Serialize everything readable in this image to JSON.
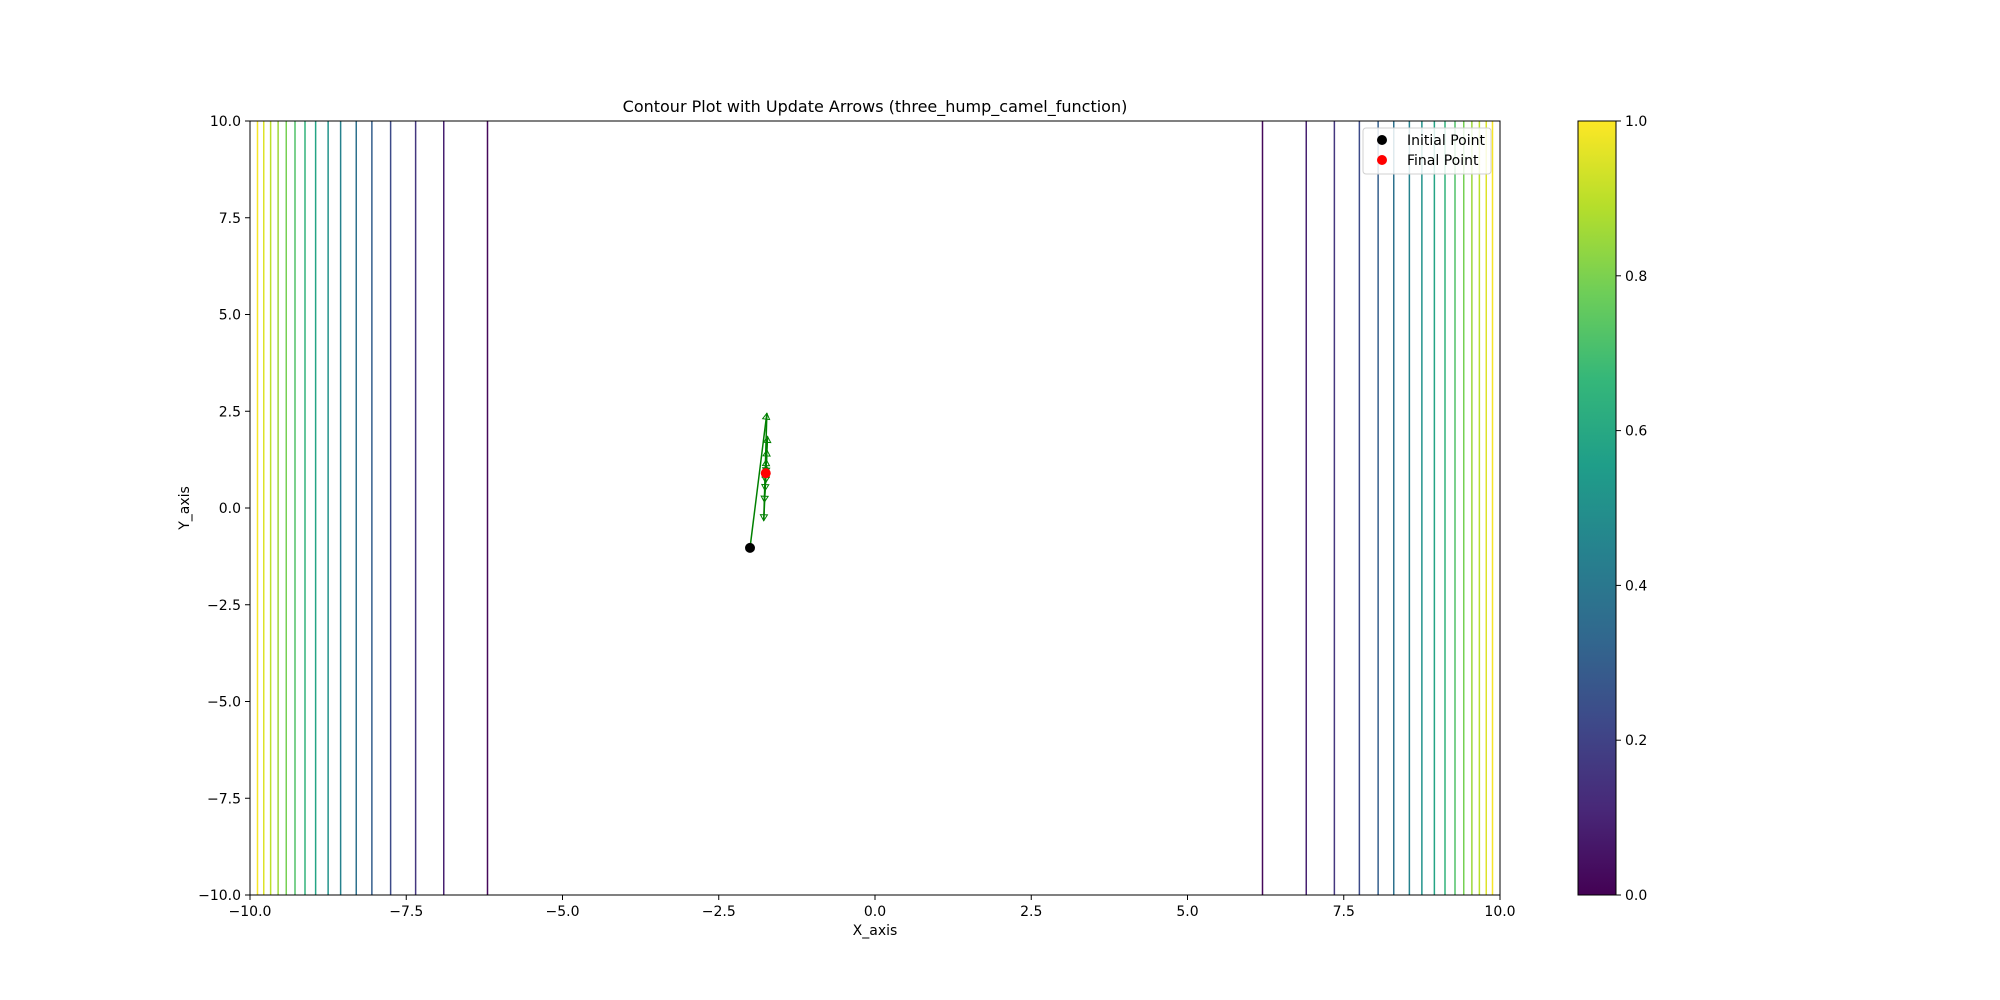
{
  "chart_data": {
    "type": "contour",
    "title": "Contour Plot with Update Arrows (three_hump_camel_function)",
    "xlabel": "X_axis",
    "ylabel": "Y_axis",
    "xlim": [
      -10,
      10
    ],
    "ylim": [
      -10,
      10
    ],
    "x_ticks": [
      "−10.0",
      "−7.5",
      "−5.0",
      "−2.5",
      "0.0",
      "2.5",
      "5.0",
      "7.5",
      "10.0"
    ],
    "y_ticks": [
      "−10.0",
      "−7.5",
      "−5.0",
      "−2.5",
      "0.0",
      "2.5",
      "5.0",
      "7.5",
      "10.0"
    ],
    "x_tick_values": [
      -10,
      -7.5,
      -5,
      -2.5,
      0,
      2.5,
      5,
      7.5,
      10
    ],
    "y_tick_values": [
      -10,
      -7.5,
      -5,
      -2.5,
      0,
      2.5,
      5,
      7.5,
      10
    ],
    "colormap": "viridis",
    "colorbar": {
      "range": [
        0,
        1
      ],
      "ticks": [
        "0.0",
        "0.2",
        "0.4",
        "0.6",
        "0.8",
        "1.0"
      ],
      "tick_values": [
        0,
        0.2,
        0.4,
        0.6,
        0.8,
        1.0
      ],
      "colors": [
        "#440154",
        "#482878",
        "#3e4989",
        "#31688e",
        "#26828e",
        "#1f9e89",
        "#35b779",
        "#6ece58",
        "#b5de2b",
        "#fde725"
      ]
    },
    "contour_levels": {
      "left_x": [
        -6.2,
        -6.9,
        -7.35,
        -7.75,
        -8.05,
        -8.3,
        -8.55,
        -8.75,
        -8.95,
        -9.12,
        -9.28,
        -9.42,
        -9.55,
        -9.67,
        -9.78,
        -9.88
      ],
      "right_x": [
        6.2,
        6.9,
        7.35,
        7.75,
        8.05,
        8.3,
        8.55,
        8.75,
        8.95,
        9.12,
        9.28,
        9.42,
        9.55,
        9.67,
        9.78,
        9.88
      ],
      "values": [
        0.02,
        0.09,
        0.16,
        0.23,
        0.3,
        0.37,
        0.44,
        0.51,
        0.58,
        0.65,
        0.72,
        0.79,
        0.85,
        0.9,
        0.95,
        0.99
      ]
    },
    "path": {
      "color": "#008000",
      "points": [
        [
          -2.0,
          -1.03
        ],
        [
          -1.73,
          2.45
        ],
        [
          -1.78,
          -0.33
        ],
        [
          -1.72,
          1.85
        ],
        [
          -1.77,
          0.15
        ],
        [
          -1.73,
          1.5
        ],
        [
          -1.76,
          0.45
        ],
        [
          -1.74,
          1.25
        ],
        [
          -1.75,
          0.65
        ],
        [
          -1.74,
          1.1
        ],
        [
          -1.75,
          0.78
        ],
        [
          -1.745,
          0.95
        ],
        [
          -1.748,
          0.88
        ]
      ]
    },
    "initial_point": {
      "x": -2.0,
      "y": -1.03,
      "color": "#000000"
    },
    "final_point": {
      "x": -1.748,
      "y": 0.9,
      "color": "#ff0000"
    },
    "legend": {
      "placement": "top-right",
      "entries": [
        {
          "label": "Initial Point",
          "color": "#000000"
        },
        {
          "label": "Final Point",
          "color": "#ff0000"
        }
      ]
    }
  }
}
